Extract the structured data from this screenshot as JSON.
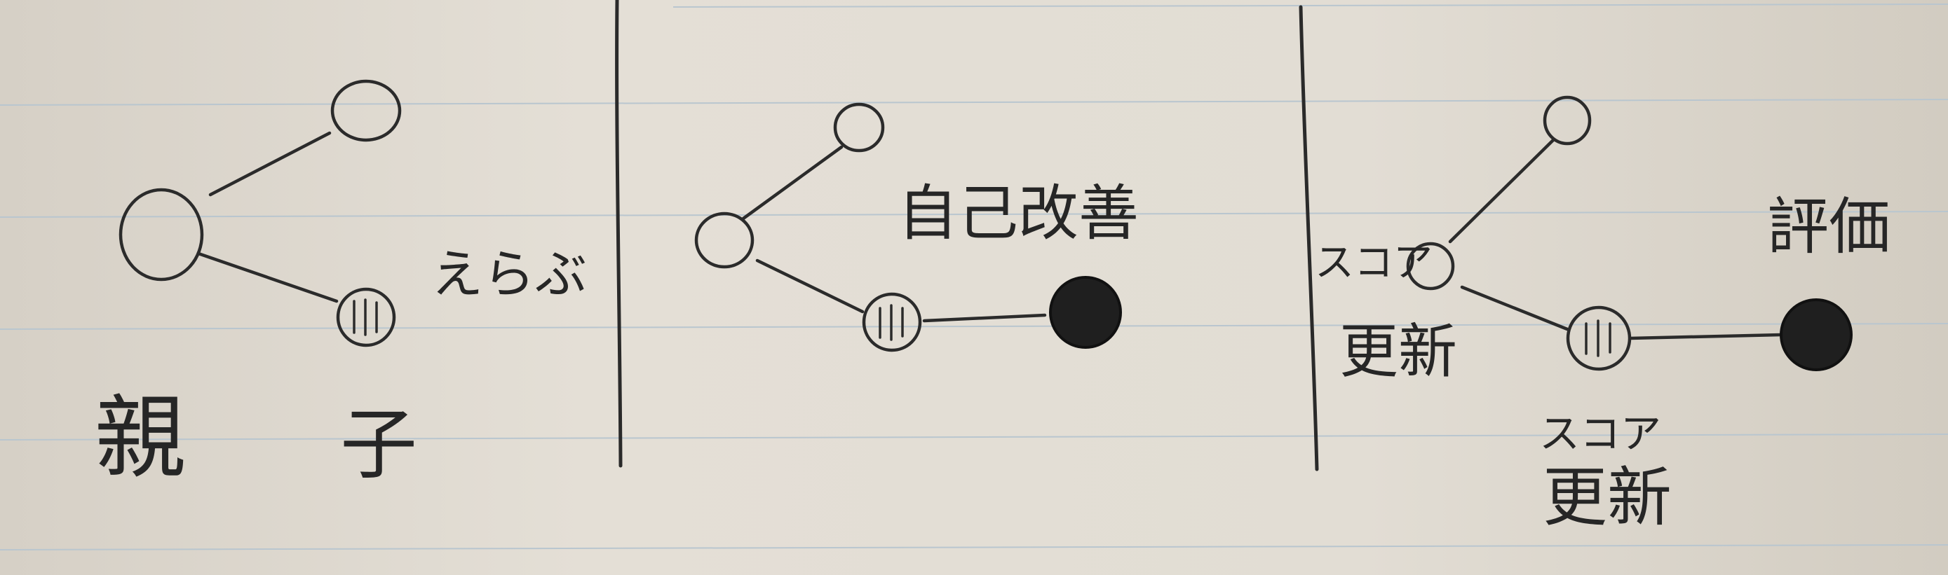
{
  "panel1": {
    "parent_label": "親",
    "child_label": "子",
    "select_label": "えらぶ"
  },
  "panel2": {
    "improve_label": "自己改善"
  },
  "panel3": {
    "score_update_side_line1": "スコア",
    "score_update_side_line2": "更新",
    "score_update_bottom_line1": "スコア",
    "score_update_bottom_line2": "更新",
    "evaluate_label": "評価"
  },
  "colors": {
    "paper": "#e2ddd4",
    "ink": "#2b2b2b",
    "rule": "#b9c6cf"
  }
}
